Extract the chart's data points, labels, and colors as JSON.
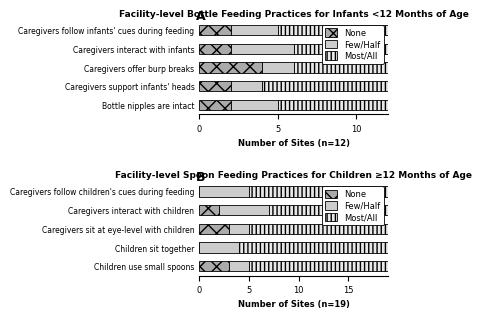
{
  "panel_a": {
    "title": "Facility-level Bottle Feeding Practices for Infants <12 Months of Age",
    "xlabel": "Number of Sites (n=12)",
    "xlim": [
      0,
      12
    ],
    "xticks": [
      0,
      5,
      10
    ],
    "categories": [
      "Caregivers follow infants' cues during feeding",
      "Caregivers interact with infants",
      "Caregivers offer burp breaks",
      "Caregivers support infants' heads",
      "Bottle nipples are intact"
    ],
    "none": [
      2,
      2,
      4,
      2,
      2
    ],
    "fewhalf": [
      3,
      4,
      2,
      2,
      3
    ],
    "mostall": [
      7,
      6,
      6,
      8,
      7
    ]
  },
  "panel_b": {
    "title": "Facility-level Spoon Feeding Practices for Children ≥12 Months of Age",
    "xlabel": "Number of Sites (n=19)",
    "xlim": [
      0,
      19
    ],
    "xticks": [
      0,
      5,
      10,
      15
    ],
    "categories": [
      "Caregivers follow children's cues during feeding",
      "Caregivers interact with children",
      "Caregivers sit at eye-level with children",
      "Children sit together",
      "Children use small spoons"
    ],
    "none": [
      0,
      2,
      3,
      0,
      3
    ],
    "fewhalf": [
      5,
      5,
      2,
      4,
      2
    ],
    "mostall": [
      14,
      12,
      14,
      15,
      14
    ]
  },
  "legend_labels": [
    "None",
    "Few/Half",
    "Most/All"
  ],
  "title_fontsize": 6.5,
  "label_fontsize": 5.5,
  "tick_fontsize": 6,
  "legend_fontsize": 6,
  "bar_height": 0.55
}
